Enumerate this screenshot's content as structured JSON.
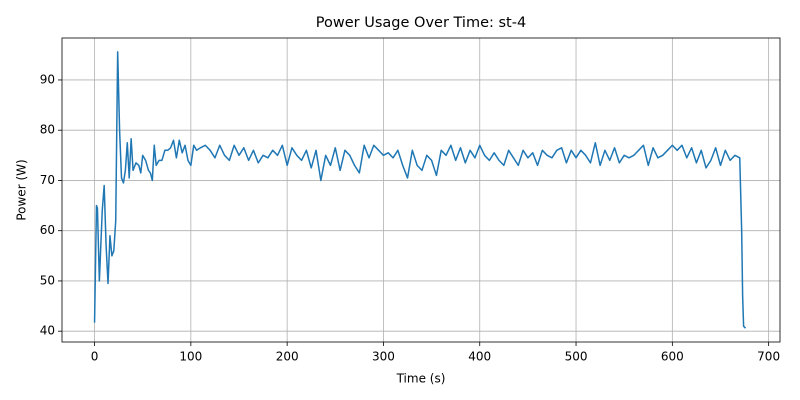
{
  "chart_data": {
    "type": "line",
    "title": "Power Usage Over Time: st-4",
    "x_label": "Time (s)",
    "y_label": "Power (W)",
    "x": [
      0,
      2,
      3,
      5,
      8,
      10,
      12,
      14,
      16,
      18,
      20,
      22,
      24,
      26,
      28,
      30,
      32,
      34,
      36,
      38,
      40,
      43,
      46,
      48,
      50,
      53,
      56,
      58,
      60,
      62,
      64,
      67,
      70,
      73,
      76,
      79,
      82,
      85,
      88,
      91,
      94,
      97,
      100,
      103,
      106,
      110,
      115,
      120,
      125,
      130,
      135,
      140,
      145,
      150,
      155,
      160,
      165,
      170,
      175,
      180,
      185,
      190,
      195,
      200,
      205,
      210,
      215,
      220,
      225,
      230,
      235,
      240,
      245,
      250,
      255,
      260,
      265,
      270,
      275,
      280,
      285,
      290,
      295,
      300,
      305,
      310,
      315,
      320,
      325,
      330,
      335,
      340,
      345,
      350,
      355,
      360,
      365,
      370,
      375,
      380,
      385,
      390,
      395,
      400,
      405,
      410,
      415,
      420,
      425,
      430,
      435,
      440,
      445,
      450,
      455,
      460,
      465,
      470,
      475,
      480,
      485,
      490,
      495,
      500,
      505,
      510,
      515,
      520,
      525,
      530,
      535,
      540,
      545,
      550,
      555,
      560,
      565,
      570,
      575,
      580,
      585,
      590,
      595,
      600,
      605,
      610,
      615,
      620,
      625,
      630,
      635,
      640,
      645,
      650,
      655,
      660,
      665,
      670,
      672,
      673,
      674,
      676
    ],
    "values": [
      41.7,
      65,
      64.5,
      50,
      64,
      69,
      57,
      49.5,
      59,
      55,
      56,
      62,
      95.6,
      80,
      70.5,
      69.5,
      72,
      77.5,
      70.5,
      78.3,
      72,
      73.5,
      73,
      71.5,
      75,
      74,
      72,
      71.5,
      70,
      77,
      73,
      74,
      74,
      76,
      76,
      76.5,
      78,
      74.5,
      78,
      75.5,
      77,
      74,
      73,
      77,
      76,
      76.5,
      77,
      76,
      74.5,
      77,
      75,
      74,
      77,
      75,
      76.5,
      74,
      76,
      73.5,
      75,
      74.5,
      76,
      75,
      77,
      73,
      76.5,
      75,
      74,
      76,
      72.5,
      76,
      70,
      75,
      73,
      76.5,
      72,
      76,
      75,
      73,
      71.5,
      77,
      74.5,
      77,
      76,
      75,
      75.5,
      74.5,
      76,
      73,
      70.5,
      76,
      73,
      72,
      75,
      74,
      71,
      76,
      75,
      77,
      74,
      76.5,
      73.5,
      76,
      74.5,
      77,
      75,
      74,
      75.5,
      74,
      73,
      76,
      74.5,
      73,
      76,
      74.5,
      75.5,
      73,
      76,
      75,
      74.5,
      76,
      76.5,
      73.5,
      76,
      74.5,
      76,
      75,
      73.5,
      77.5,
      73,
      76,
      74,
      76.5,
      73.5,
      75,
      74.5,
      75,
      76,
      77,
      73,
      76.5,
      74.5,
      75,
      76,
      77,
      76,
      77,
      74.5,
      76.5,
      73.5,
      76,
      72.5,
      74,
      76.5,
      73,
      76,
      74,
      75,
      74.5,
      60,
      47,
      41,
      40.6
    ],
    "color": "#1f77b4",
    "xlim": [
      -33.8,
      711.8
    ],
    "ylim": [
      37.85,
      98.35
    ],
    "xticks": [
      0,
      100,
      200,
      300,
      400,
      500,
      600,
      700
    ],
    "yticks": [
      40,
      50,
      60,
      70,
      80,
      90
    ],
    "grid": true
  }
}
